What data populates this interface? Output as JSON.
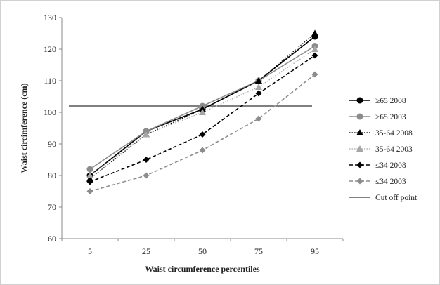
{
  "chart_data": {
    "type": "line",
    "title": "",
    "xlabel": "Waist circumference percentiles",
    "ylabel": "Waist circimference (cm)",
    "categories": [
      "5",
      "25",
      "50",
      "75",
      "95"
    ],
    "ylim": [
      60,
      130
    ],
    "yticks": [
      "60",
      "70",
      "80",
      "90",
      "100",
      "110",
      "120",
      "130"
    ],
    "grid": false,
    "legend_position": "right",
    "series": [
      {
        "name": "≥65 2008",
        "values": [
          80,
          94,
          101,
          110,
          124
        ],
        "color": "#000000",
        "dash": "solid",
        "marker": "circle"
      },
      {
        "name": "≥65 2003",
        "values": [
          82,
          94,
          102,
          110,
          121
        ],
        "color": "#8c8c8c",
        "dash": "solid",
        "marker": "circle"
      },
      {
        "name": "35-64 2008",
        "values": [
          79,
          93,
          101,
          110,
          125
        ],
        "color": "#000000",
        "dash": "dotted",
        "marker": "triangle"
      },
      {
        "name": "35-64 2003",
        "values": [
          80,
          93,
          100,
          108,
          120
        ],
        "color": "#a6a6a6",
        "dash": "dotted",
        "marker": "triangle"
      },
      {
        "name": "≤34 2008",
        "values": [
          78,
          85,
          93,
          106,
          118
        ],
        "color": "#000000",
        "dash": "dashed",
        "marker": "diamond"
      },
      {
        "name": "≤34 2003",
        "values": [
          75,
          80,
          88,
          98,
          112
        ],
        "color": "#8c8c8c",
        "dash": "dashed",
        "marker": "diamond"
      }
    ],
    "reference_line": {
      "name": "Cut off point",
      "value": 102,
      "color": "#000000"
    }
  }
}
